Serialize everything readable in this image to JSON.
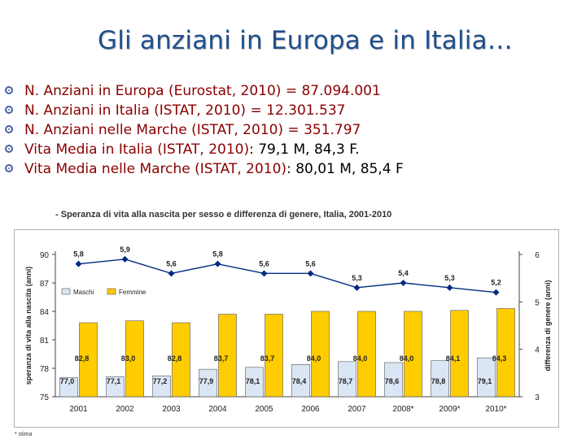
{
  "title": "Gli anziani in Europa e in Italia…",
  "bullets": [
    {
      "text": "N. Anziani in Europa (Eurostat, 2010) = 87.094.001",
      "tail": ""
    },
    {
      "text": "N. Anziani in Italia (ISTAT, 2010) = 12.301.537",
      "tail": ""
    },
    {
      "text": "N. Anziani nelle Marche (ISTAT, 2010) = 351.797",
      "tail": ""
    },
    {
      "text": "Vita Media in Italia (ISTAT, 2010)",
      "tail": ": 79,1 M, 84,3 F."
    },
    {
      "text": "Vita Media nelle Marche (ISTAT, 2010)",
      "tail": ": 80,01 M, 85,4 F"
    }
  ],
  "chart_caption": "- Speranza di vita alla nascita per sesso e differenza di genere, Italia, 2001-2010",
  "footnote": "* stima",
  "colors": {
    "male_bar": "#dbe6f5",
    "female_bar": "#ffcc00",
    "line": "#002b7f",
    "bar_border": "#555555"
  },
  "chart_data": {
    "type": "bar",
    "categories": [
      "2001",
      "2002",
      "2003",
      "2004",
      "2005",
      "2006",
      "2007",
      "2008*",
      "2009*",
      "2010*"
    ],
    "series": [
      {
        "name": "Maschi",
        "type": "bar",
        "axis": "left",
        "values": [
          77.0,
          77.1,
          77.2,
          77.9,
          78.1,
          78.4,
          78.7,
          78.6,
          78.8,
          79.1
        ],
        "labels": [
          "77,0",
          "77,1",
          "77,2",
          "77,9",
          "78,1",
          "78,4",
          "78,7",
          "78,6",
          "78,8",
          "79,1"
        ]
      },
      {
        "name": "Femmine",
        "type": "bar",
        "axis": "left",
        "values": [
          82.8,
          83.0,
          82.8,
          83.7,
          83.7,
          84.0,
          84.0,
          84.0,
          84.1,
          84.3
        ],
        "labels": [
          "82,8",
          "83,0",
          "82,8",
          "83,7",
          "83,7",
          "84,0",
          "84,0",
          "84,0",
          "84,1",
          "84,3"
        ]
      },
      {
        "name": "",
        "type": "line",
        "axis": "right",
        "values": [
          5.8,
          5.9,
          5.6,
          5.8,
          5.6,
          5.6,
          5.3,
          5.4,
          5.3,
          5.2
        ],
        "labels": [
          "5,8",
          "5,9",
          "5,6",
          "5,8",
          "5,6",
          "5,6",
          "5,3",
          "5,4",
          "5,3",
          "5,2"
        ]
      }
    ],
    "ylabel": "speranza di vita alla nascita (anni)",
    "y2label": "differenza di genere (anni)",
    "ylim": [
      75,
      90
    ],
    "y2lim": [
      3,
      6
    ],
    "yticks": [
      "75",
      "78",
      "81",
      "84",
      "87",
      "90"
    ],
    "y2ticks": [
      "3",
      "4",
      "5",
      "6"
    ],
    "legend": [
      "Maschi",
      "Femmine"
    ],
    "legend_position": "top-left",
    "grid": false
  }
}
